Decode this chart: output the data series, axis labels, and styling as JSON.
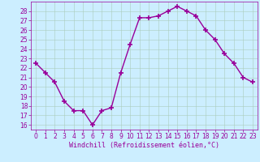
{
  "x": [
    0,
    1,
    2,
    3,
    4,
    5,
    6,
    7,
    8,
    9,
    10,
    11,
    12,
    13,
    14,
    15,
    16,
    17,
    18,
    19,
    20,
    21,
    22,
    23
  ],
  "y": [
    22.5,
    21.5,
    20.5,
    18.5,
    17.5,
    17.5,
    16.0,
    17.5,
    17.8,
    21.5,
    24.5,
    27.3,
    27.3,
    27.5,
    28.0,
    28.5,
    28.0,
    27.5,
    26.0,
    25.0,
    23.5,
    22.5,
    21.0,
    20.5
  ],
  "line_color": "#990099",
  "marker": "+",
  "markersize": 4,
  "markeredgewidth": 1.2,
  "linewidth": 1.0,
  "xlabel": "Windchill (Refroidissement éolien,°C)",
  "xlabel_fontsize": 6.0,
  "bg_color": "#cceeff",
  "grid_color": "#aaccbb",
  "tick_color": "#990099",
  "tick_fontsize": 5.5,
  "ylim": [
    15.5,
    29.0
  ],
  "xlim": [
    -0.5,
    23.5
  ],
  "yticks": [
    16,
    17,
    18,
    19,
    20,
    21,
    22,
    23,
    24,
    25,
    26,
    27,
    28
  ],
  "xticks": [
    0,
    1,
    2,
    3,
    4,
    5,
    6,
    7,
    8,
    9,
    10,
    11,
    12,
    13,
    14,
    15,
    16,
    17,
    18,
    19,
    20,
    21,
    22,
    23
  ]
}
